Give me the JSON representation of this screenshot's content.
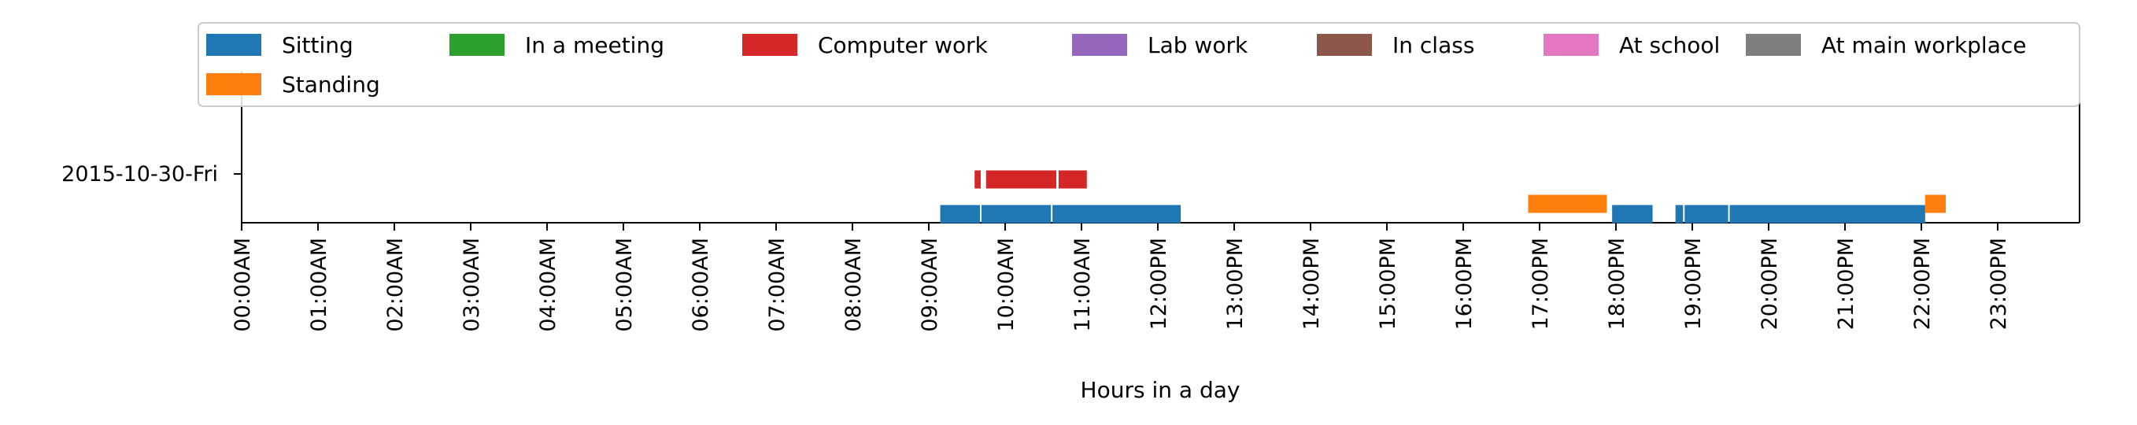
{
  "chart_data": {
    "type": "timeline",
    "title": "",
    "xlabel": "Hours in a day",
    "ylabel": "",
    "xlim": [
      0,
      24
    ],
    "day_label": "2015-10-30-Fri",
    "x_ticks": [
      {
        "hour": 0,
        "label": "00:00AM"
      },
      {
        "hour": 1,
        "label": "01:00AM"
      },
      {
        "hour": 2,
        "label": "02:00AM"
      },
      {
        "hour": 3,
        "label": "03:00AM"
      },
      {
        "hour": 4,
        "label": "04:00AM"
      },
      {
        "hour": 5,
        "label": "05:00AM"
      },
      {
        "hour": 6,
        "label": "06:00AM"
      },
      {
        "hour": 7,
        "label": "07:00AM"
      },
      {
        "hour": 8,
        "label": "08:00AM"
      },
      {
        "hour": 9,
        "label": "09:00AM"
      },
      {
        "hour": 10,
        "label": "10:00AM"
      },
      {
        "hour": 11,
        "label": "11:00AM"
      },
      {
        "hour": 12,
        "label": "12:00PM"
      },
      {
        "hour": 13,
        "label": "13:00PM"
      },
      {
        "hour": 14,
        "label": "14:00PM"
      },
      {
        "hour": 15,
        "label": "15:00PM"
      },
      {
        "hour": 16,
        "label": "16:00PM"
      },
      {
        "hour": 17,
        "label": "17:00PM"
      },
      {
        "hour": 18,
        "label": "18:00PM"
      },
      {
        "hour": 19,
        "label": "19:00PM"
      },
      {
        "hour": 20,
        "label": "20:00PM"
      },
      {
        "hour": 21,
        "label": "21:00PM"
      },
      {
        "hour": 22,
        "label": "22:00PM"
      },
      {
        "hour": 23,
        "label": "23:00PM"
      }
    ],
    "series": [
      {
        "name": "Sitting",
        "color": "#1f77b4",
        "lane": 0,
        "intervals": [
          [
            9.15,
            9.67
          ],
          [
            9.69,
            10.6
          ],
          [
            10.62,
            12.3
          ],
          [
            17.95,
            18.48
          ],
          [
            18.78,
            18.88
          ],
          [
            18.9,
            19.47
          ],
          [
            19.49,
            22.05
          ]
        ]
      },
      {
        "name": "Standing",
        "color": "#ff7f0e",
        "lane": 1,
        "intervals": [
          [
            16.85,
            17.88
          ],
          [
            22.05,
            22.32
          ]
        ]
      },
      {
        "name": "In a meeting",
        "color": "#2ca02c",
        "lane": 2,
        "intervals": []
      },
      {
        "name": "Computer work",
        "color": "#d62728",
        "lane": 2,
        "intervals": [
          [
            9.6,
            9.68
          ],
          [
            9.75,
            10.67
          ],
          [
            10.7,
            11.07
          ]
        ]
      },
      {
        "name": "Lab work",
        "color": "#9467bd",
        "lane": 3,
        "intervals": []
      },
      {
        "name": "In class",
        "color": "#8c564b",
        "lane": 3,
        "intervals": []
      },
      {
        "name": "At school",
        "color": "#e377c2",
        "lane": 3,
        "intervals": []
      },
      {
        "name": "At main workplace",
        "color": "#7f7f7f",
        "lane": 3,
        "intervals": []
      }
    ]
  }
}
